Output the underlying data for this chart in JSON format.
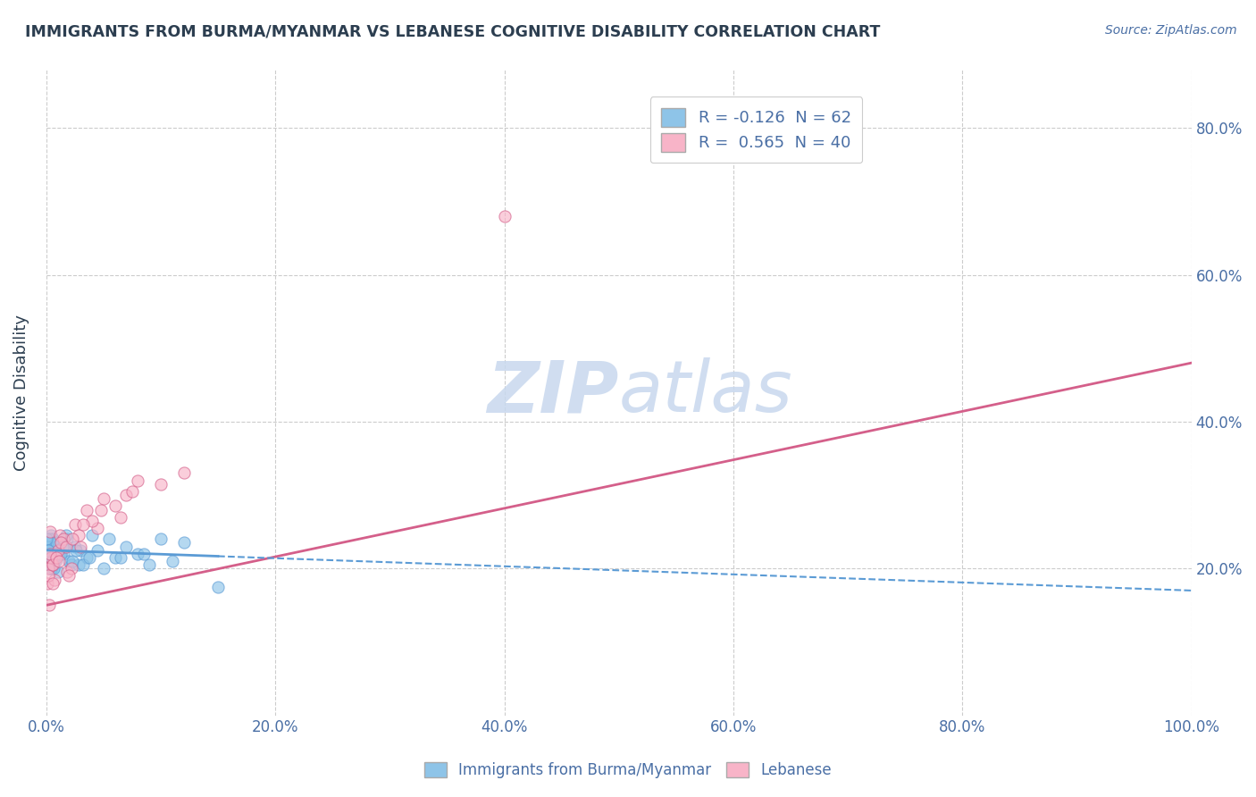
{
  "title": "IMMIGRANTS FROM BURMA/MYANMAR VS LEBANESE COGNITIVE DISABILITY CORRELATION CHART",
  "source_text": "Source: ZipAtlas.com",
  "ylabel": "Cognitive Disability",
  "blue_R": -0.126,
  "blue_N": 62,
  "pink_R": 0.565,
  "pink_N": 40,
  "legend_label_blue": "Immigrants from Burma/Myanmar",
  "legend_label_pink": "Lebanese",
  "blue_scatter_x": [
    0.1,
    0.2,
    0.3,
    0.4,
    0.5,
    0.6,
    0.8,
    1.0,
    1.2,
    1.5,
    1.8,
    2.0,
    2.2,
    2.5,
    3.0,
    3.5,
    4.0,
    5.0,
    6.0,
    7.0,
    8.0,
    9.0,
    10.0,
    11.0,
    12.0,
    0.15,
    0.25,
    0.35,
    0.55,
    0.75,
    1.1,
    1.6,
    2.8,
    0.05,
    0.08,
    0.12,
    0.18,
    0.28,
    0.42,
    0.62,
    0.9,
    1.3,
    1.7,
    2.3,
    3.2,
    4.5,
    6.5,
    0.07,
    0.22,
    0.38,
    0.58,
    0.85,
    0.05,
    0.15,
    0.45,
    0.65,
    1.4,
    2.6,
    3.8,
    5.5,
    8.5,
    15.0
  ],
  "blue_scatter_y": [
    22.0,
    21.5,
    23.0,
    24.5,
    20.0,
    22.5,
    21.0,
    19.5,
    23.5,
    22.0,
    24.0,
    21.0,
    20.5,
    23.0,
    22.5,
    21.5,
    24.5,
    20.0,
    21.5,
    23.0,
    22.0,
    20.5,
    24.0,
    21.0,
    23.5,
    22.5,
    20.0,
    23.5,
    24.0,
    21.5,
    22.0,
    23.0,
    20.5,
    22.0,
    21.0,
    23.5,
    22.5,
    24.0,
    20.0,
    21.5,
    23.0,
    22.0,
    24.5,
    21.0,
    20.5,
    22.5,
    21.5,
    23.0,
    22.0,
    21.0,
    20.5,
    23.5,
    24.0,
    22.5,
    21.0,
    20.0,
    23.0,
    22.5,
    21.5,
    24.0,
    22.0,
    17.5
  ],
  "pink_scatter_x": [
    0.1,
    0.3,
    0.5,
    0.8,
    1.2,
    1.8,
    2.5,
    3.5,
    5.0,
    7.0,
    0.2,
    0.4,
    0.7,
    1.0,
    1.5,
    2.2,
    3.0,
    4.5,
    6.5,
    10.0,
    0.15,
    0.35,
    0.6,
    0.9,
    1.3,
    2.0,
    2.8,
    4.0,
    6.0,
    8.0,
    0.25,
    0.55,
    1.1,
    1.7,
    2.3,
    3.2,
    4.8,
    7.5,
    12.0,
    40.0
  ],
  "pink_scatter_y": [
    18.0,
    25.0,
    20.5,
    22.0,
    24.5,
    19.5,
    26.0,
    28.0,
    29.5,
    30.0,
    20.0,
    21.5,
    18.5,
    22.5,
    24.0,
    20.0,
    23.0,
    25.5,
    27.0,
    31.5,
    19.0,
    22.0,
    20.5,
    21.5,
    23.5,
    19.0,
    24.5,
    26.5,
    28.5,
    32.0,
    15.0,
    18.0,
    21.0,
    23.0,
    24.0,
    26.0,
    28.0,
    30.5,
    33.0,
    68.0
  ],
  "blue_color": "#8ec4e8",
  "pink_color": "#f8b4c8",
  "blue_line_color": "#5b9bd5",
  "pink_line_color": "#d45f8a",
  "text_color": "#4a6fa5",
  "title_color": "#2c3e50",
  "watermark_color": "#c8d8ee",
  "bg_color": "#ffffff",
  "grid_color": "#cccccc",
  "blue_trend_x0": 0,
  "blue_trend_x1": 100,
  "blue_trend_y0": 22.5,
  "blue_trend_y1": 17.0,
  "pink_trend_x0": 0,
  "pink_trend_x1": 100,
  "pink_trend_y0": 15.0,
  "pink_trend_y1": 48.0,
  "xmin": 0,
  "xmax": 100,
  "ymin": 0,
  "ymax": 88,
  "xticks": [
    0,
    20,
    40,
    60,
    80,
    100
  ],
  "yticks": [
    20,
    40,
    60,
    80
  ]
}
